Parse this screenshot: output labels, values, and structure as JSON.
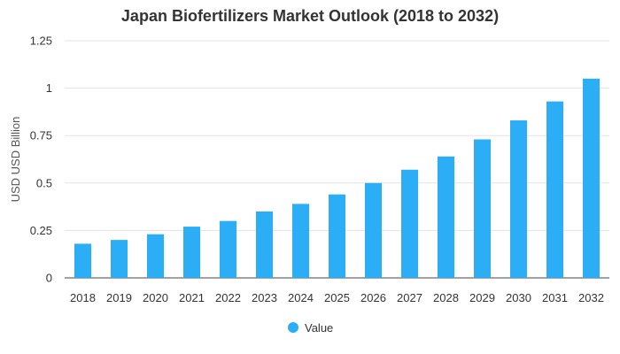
{
  "chart_data": {
    "type": "bar",
    "title": "Japan Biofertilizers Market Outlook (2018 to 2032)",
    "xlabel": "",
    "ylabel": "USD USD Billion",
    "categories": [
      "2018",
      "2019",
      "2020",
      "2021",
      "2022",
      "2023",
      "2024",
      "2025",
      "2026",
      "2027",
      "2028",
      "2029",
      "2030",
      "2031",
      "2032"
    ],
    "series": [
      {
        "name": "Value",
        "color": "#2BAEF5",
        "values": [
          0.18,
          0.2,
          0.23,
          0.27,
          0.3,
          0.35,
          0.39,
          0.44,
          0.5,
          0.57,
          0.64,
          0.73,
          0.83,
          0.93,
          1.05
        ]
      }
    ],
    "ylim": [
      0,
      1.25
    ],
    "yticks": [
      0,
      0.25,
      0.5,
      0.75,
      1,
      1.25
    ],
    "ytick_labels": [
      "0",
      "0.25",
      "0.5",
      "0.75",
      "1",
      "1.25"
    ],
    "grid": true,
    "legend_position": "bottom-center"
  }
}
